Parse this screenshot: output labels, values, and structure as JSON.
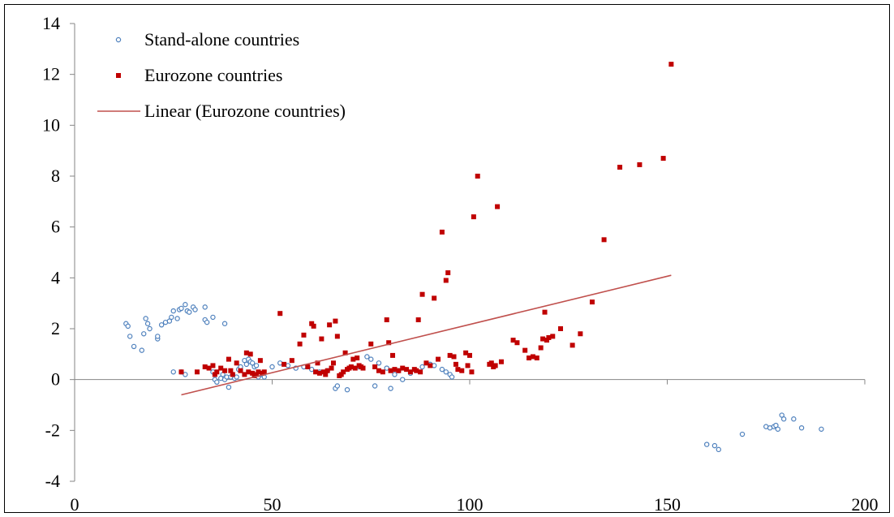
{
  "chart_data": {
    "type": "scatter",
    "title": "",
    "xlabel": "",
    "ylabel": "",
    "xlim": [
      0,
      200
    ],
    "ylim": [
      -4,
      14
    ],
    "x_ticks": [
      0,
      50,
      100,
      150,
      200
    ],
    "y_ticks": [
      -4,
      -2,
      0,
      2,
      4,
      6,
      8,
      10,
      12,
      14
    ],
    "grid": false,
    "legend_position": "top-left",
    "series": [
      {
        "name": "Stand-alone countries",
        "marker": "open-circle",
        "color": "#4f81bd",
        "points": [
          [
            13,
            2.2
          ],
          [
            13.5,
            2.1
          ],
          [
            14,
            1.7
          ],
          [
            15,
            1.3
          ],
          [
            17,
            1.15
          ],
          [
            17.5,
            1.8
          ],
          [
            18,
            2.4
          ],
          [
            18.5,
            2.2
          ],
          [
            19,
            2.0
          ],
          [
            21,
            1.6
          ],
          [
            21,
            1.7
          ],
          [
            22,
            2.15
          ],
          [
            23,
            2.25
          ],
          [
            24,
            2.3
          ],
          [
            24.5,
            2.45
          ],
          [
            25,
            2.7
          ],
          [
            26,
            2.4
          ],
          [
            26.5,
            2.75
          ],
          [
            27,
            2.8
          ],
          [
            28,
            2.95
          ],
          [
            28.5,
            2.7
          ],
          [
            29,
            2.65
          ],
          [
            30,
            2.85
          ],
          [
            30.5,
            2.75
          ],
          [
            33,
            2.85
          ],
          [
            33,
            2.35
          ],
          [
            33.5,
            2.25
          ],
          [
            35,
            2.45
          ],
          [
            38,
            2.2
          ],
          [
            25,
            0.3
          ],
          [
            27,
            0.3
          ],
          [
            28,
            0.2
          ],
          [
            35,
            0.3
          ],
          [
            35.5,
            0.0
          ],
          [
            36,
            -0.1
          ],
          [
            37,
            0.05
          ],
          [
            37.5,
            0.2
          ],
          [
            38,
            0.0
          ],
          [
            38.5,
            0.1
          ],
          [
            39,
            -0.3
          ],
          [
            39.5,
            0.1
          ],
          [
            40,
            0.2
          ],
          [
            40.5,
            0.05
          ],
          [
            41,
            0.1
          ],
          [
            41.5,
            0.4
          ],
          [
            42,
            0.5
          ],
          [
            43,
            0.75
          ],
          [
            43.5,
            0.6
          ],
          [
            44,
            0.8
          ],
          [
            44.5,
            0.7
          ],
          [
            45,
            0.65
          ],
          [
            45.5,
            0.5
          ],
          [
            46,
            0.55
          ],
          [
            46.5,
            0.1
          ],
          [
            47,
            0.2
          ],
          [
            48,
            0.1
          ],
          [
            50,
            0.5
          ],
          [
            52,
            0.65
          ],
          [
            54,
            0.55
          ],
          [
            56,
            0.45
          ],
          [
            58,
            0.5
          ],
          [
            60,
            0.4
          ],
          [
            62,
            0.3
          ],
          [
            64,
            0.35
          ],
          [
            66,
            -0.35
          ],
          [
            66.5,
            -0.25
          ],
          [
            69,
            -0.4
          ],
          [
            72,
            0.5
          ],
          [
            74,
            0.9
          ],
          [
            75,
            0.8
          ],
          [
            76,
            -0.25
          ],
          [
            77,
            0.65
          ],
          [
            79,
            0.45
          ],
          [
            80,
            -0.35
          ],
          [
            81,
            0.2
          ],
          [
            82,
            0.35
          ],
          [
            83,
            0.0
          ],
          [
            85,
            0.25
          ],
          [
            88,
            0.5
          ],
          [
            90,
            0.6
          ],
          [
            91,
            0.55
          ],
          [
            93,
            0.4
          ],
          [
            94,
            0.3
          ],
          [
            95,
            0.2
          ],
          [
            95.5,
            0.1
          ],
          [
            160,
            -2.55
          ],
          [
            162,
            -2.6
          ],
          [
            163,
            -2.75
          ],
          [
            169,
            -2.15
          ],
          [
            175,
            -1.85
          ],
          [
            176,
            -1.9
          ],
          [
            177,
            -1.85
          ],
          [
            177.5,
            -1.8
          ],
          [
            178,
            -1.95
          ],
          [
            179,
            -1.4
          ],
          [
            179.5,
            -1.55
          ],
          [
            182,
            -1.55
          ],
          [
            184,
            -1.9
          ],
          [
            189,
            -1.95
          ]
        ]
      },
      {
        "name": "Eurozone countries",
        "marker": "filled-square",
        "color": "#c00000",
        "points": [
          [
            27,
            0.3
          ],
          [
            31,
            0.3
          ],
          [
            33,
            0.5
          ],
          [
            34,
            0.45
          ],
          [
            35,
            0.55
          ],
          [
            35.5,
            0.2
          ],
          [
            36,
            0.3
          ],
          [
            37,
            0.45
          ],
          [
            38,
            0.35
          ],
          [
            39,
            0.8
          ],
          [
            39.5,
            0.35
          ],
          [
            40,
            0.2
          ],
          [
            41,
            0.65
          ],
          [
            42,
            0.35
          ],
          [
            43,
            0.2
          ],
          [
            43.5,
            1.05
          ],
          [
            44,
            0.3
          ],
          [
            44.5,
            1.0
          ],
          [
            45,
            0.25
          ],
          [
            45.5,
            0.15
          ],
          [
            46,
            0.2
          ],
          [
            46.5,
            0.3
          ],
          [
            47,
            0.75
          ],
          [
            47.5,
            0.25
          ],
          [
            48,
            0.3
          ],
          [
            52,
            2.6
          ],
          [
            53,
            0.6
          ],
          [
            55,
            0.75
          ],
          [
            57,
            1.4
          ],
          [
            58,
            1.75
          ],
          [
            59,
            0.5
          ],
          [
            60,
            2.2
          ],
          [
            60.5,
            2.1
          ],
          [
            61,
            0.3
          ],
          [
            61.5,
            0.65
          ],
          [
            62,
            0.25
          ],
          [
            62.5,
            1.6
          ],
          [
            63,
            0.3
          ],
          [
            63.5,
            0.2
          ],
          [
            64,
            0.35
          ],
          [
            64.5,
            2.15
          ],
          [
            65,
            0.45
          ],
          [
            65.5,
            0.65
          ],
          [
            66,
            2.3
          ],
          [
            66.5,
            1.7
          ],
          [
            67,
            0.15
          ],
          [
            67.5,
            0.2
          ],
          [
            68,
            0.3
          ],
          [
            68.5,
            1.05
          ],
          [
            69,
            0.4
          ],
          [
            69.5,
            0.45
          ],
          [
            70,
            0.5
          ],
          [
            70.5,
            0.8
          ],
          [
            71,
            0.45
          ],
          [
            71.5,
            0.85
          ],
          [
            72,
            0.55
          ],
          [
            72.5,
            0.5
          ],
          [
            73,
            0.45
          ],
          [
            75,
            1.4
          ],
          [
            76,
            0.5
          ],
          [
            77,
            0.35
          ],
          [
            78,
            0.3
          ],
          [
            79,
            2.35
          ],
          [
            79.5,
            1.45
          ],
          [
            80,
            0.35
          ],
          [
            80.5,
            0.95
          ],
          [
            81,
            0.4
          ],
          [
            82,
            0.35
          ],
          [
            83,
            0.45
          ],
          [
            84,
            0.4
          ],
          [
            85,
            0.3
          ],
          [
            86,
            0.4
          ],
          [
            86.5,
            0.35
          ],
          [
            87,
            2.35
          ],
          [
            87.5,
            0.3
          ],
          [
            88,
            3.35
          ],
          [
            89,
            0.65
          ],
          [
            90,
            0.55
          ],
          [
            91,
            3.2
          ],
          [
            92,
            0.8
          ],
          [
            93,
            5.8
          ],
          [
            94,
            3.9
          ],
          [
            94.5,
            4.2
          ],
          [
            95,
            0.95
          ],
          [
            96,
            0.9
          ],
          [
            96.5,
            0.6
          ],
          [
            97,
            0.4
          ],
          [
            98,
            0.35
          ],
          [
            99,
            1.05
          ],
          [
            99.5,
            0.55
          ],
          [
            100,
            0.95
          ],
          [
            100.5,
            0.3
          ],
          [
            101,
            6.4
          ],
          [
            102,
            8.0
          ],
          [
            105,
            0.6
          ],
          [
            105.5,
            0.65
          ],
          [
            106,
            0.5
          ],
          [
            106.5,
            0.55
          ],
          [
            107,
            6.8
          ],
          [
            108,
            0.7
          ],
          [
            111,
            1.55
          ],
          [
            112,
            1.45
          ],
          [
            114,
            1.15
          ],
          [
            115,
            0.85
          ],
          [
            116,
            0.9
          ],
          [
            117,
            0.85
          ],
          [
            118,
            1.25
          ],
          [
            118.5,
            1.6
          ],
          [
            119,
            2.65
          ],
          [
            119.5,
            1.55
          ],
          [
            120,
            1.65
          ],
          [
            121,
            1.7
          ],
          [
            123,
            2.0
          ],
          [
            126,
            1.35
          ],
          [
            128,
            1.8
          ],
          [
            131,
            3.05
          ],
          [
            134,
            5.5
          ],
          [
            138,
            8.35
          ],
          [
            143,
            8.45
          ],
          [
            149,
            8.7
          ],
          [
            151,
            12.4
          ]
        ]
      },
      {
        "name": "Linear (Eurozone countries)",
        "marker": "line",
        "color": "#c0504d",
        "line_from": [
          27,
          -0.6
        ],
        "line_to": [
          151,
          4.1
        ]
      }
    ]
  }
}
